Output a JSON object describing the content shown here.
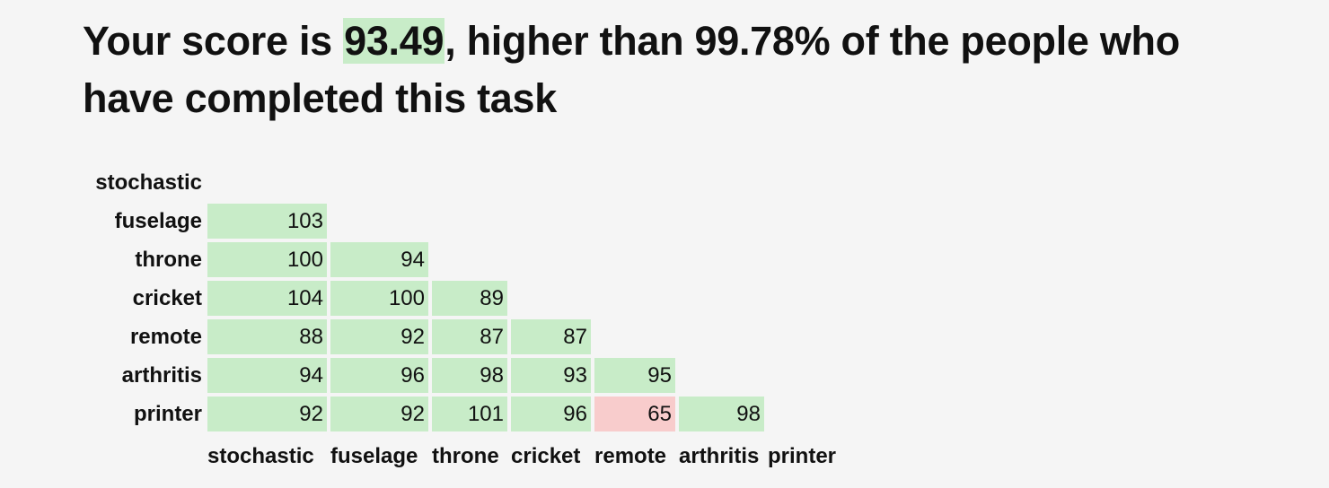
{
  "heading": {
    "prefix": "Your score is ",
    "score": "93.49",
    "suffix": ", higher than 99.78% of the people who have completed this task"
  },
  "colors": {
    "good": "#c8ecc8",
    "bad": "#f8cccc"
  },
  "matrix": {
    "words": [
      "stochastic",
      "fuselage",
      "throne",
      "cricket",
      "remote",
      "arthritis",
      "printer"
    ],
    "rows": [
      {
        "label": "stochastic",
        "cells": []
      },
      {
        "label": "fuselage",
        "cells": [
          {
            "value": "103",
            "status": "good"
          }
        ]
      },
      {
        "label": "throne",
        "cells": [
          {
            "value": "100",
            "status": "good"
          },
          {
            "value": "94",
            "status": "good"
          }
        ]
      },
      {
        "label": "cricket",
        "cells": [
          {
            "value": "104",
            "status": "good"
          },
          {
            "value": "100",
            "status": "good"
          },
          {
            "value": "89",
            "status": "good"
          }
        ]
      },
      {
        "label": "remote",
        "cells": [
          {
            "value": "88",
            "status": "good"
          },
          {
            "value": "92",
            "status": "good"
          },
          {
            "value": "87",
            "status": "good"
          },
          {
            "value": "87",
            "status": "good"
          }
        ]
      },
      {
        "label": "arthritis",
        "cells": [
          {
            "value": "94",
            "status": "good"
          },
          {
            "value": "96",
            "status": "good"
          },
          {
            "value": "98",
            "status": "good"
          },
          {
            "value": "93",
            "status": "good"
          },
          {
            "value": "95",
            "status": "good"
          }
        ]
      },
      {
        "label": "printer",
        "cells": [
          {
            "value": "92",
            "status": "good"
          },
          {
            "value": "92",
            "status": "good"
          },
          {
            "value": "101",
            "status": "good"
          },
          {
            "value": "96",
            "status": "good"
          },
          {
            "value": "65",
            "status": "bad"
          },
          {
            "value": "98",
            "status": "good"
          }
        ]
      }
    ]
  }
}
